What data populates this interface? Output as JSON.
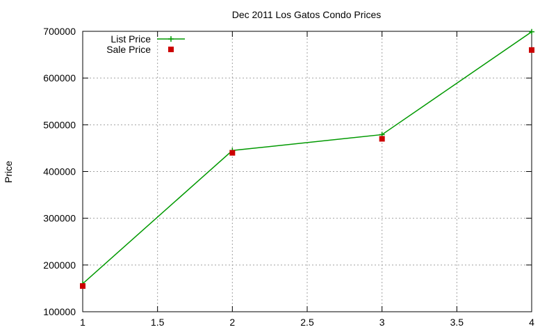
{
  "chart_data": {
    "type": "line",
    "title": "Dec 2011 Los Gatos Condo Prices",
    "xlabel": "",
    "ylabel": "Price",
    "xlim": [
      1,
      4
    ],
    "ylim": [
      100000,
      700000
    ],
    "xticks": [
      "1",
      "1.5",
      "2",
      "2.5",
      "3",
      "3.5",
      "4"
    ],
    "yticks": [
      "100000",
      "200000",
      "300000",
      "400000",
      "500000",
      "600000",
      "700000"
    ],
    "grid": true,
    "legend_position": "top-left",
    "series": [
      {
        "name": "List Price",
        "style": "lines+points",
        "marker": "plus",
        "color": "#009900",
        "x": [
          1,
          2,
          3,
          4
        ],
        "y": [
          160000,
          445000,
          479000,
          699000
        ]
      },
      {
        "name": "Sale Price",
        "style": "points",
        "marker": "square",
        "color": "#cc0000",
        "x": [
          1,
          2,
          3,
          4
        ],
        "y": [
          155000,
          440000,
          470000,
          660000
        ]
      }
    ]
  }
}
